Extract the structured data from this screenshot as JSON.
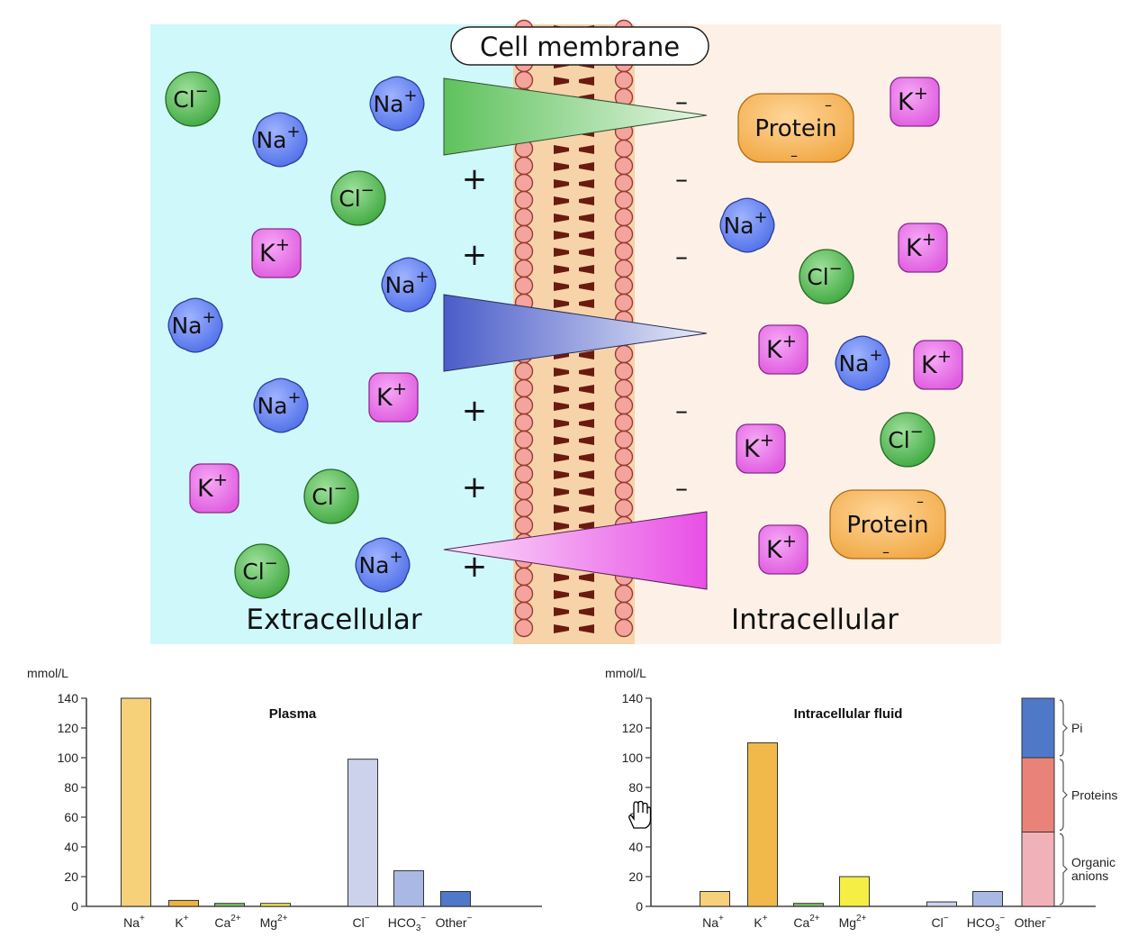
{
  "diagram": {
    "title": "Cell membrane",
    "left_label": "Extracellular",
    "right_label": "Intracellular",
    "colors": {
      "extracellular_bg": "#cff8fb",
      "intracellular_bg": "#fdf1e7",
      "na": "#4f6fe8",
      "k": "#e05ce0",
      "cl": "#3fa83f",
      "protein": "#f0a640",
      "na_gradient": "#4a5cc9",
      "k_gradient": "#e84fe6",
      "cl_gradient": "#5ec25c"
    },
    "ions": {
      "na": {
        "base": "Na",
        "sup": "+"
      },
      "k": {
        "base": "K",
        "sup": "+"
      },
      "cl": {
        "base": "Cl",
        "sup": "−"
      },
      "protein": {
        "base": "Protein",
        "charge": "–"
      }
    },
    "charges": {
      "positive": "+",
      "negative": "–"
    }
  },
  "charts": [
    {
      "title": "Plasma",
      "unit": "mmol/L",
      "chart_data": {
        "type": "bar",
        "title": "Plasma",
        "ylabel": "mmol/L",
        "ylim": [
          0,
          140
        ],
        "yticks": [
          0,
          20,
          40,
          60,
          80,
          100,
          120,
          140
        ],
        "categories": [
          {
            "base": "Na",
            "sup": "+"
          },
          {
            "base": "K",
            "sup": "+"
          },
          {
            "base": "Ca",
            "sup": "2+"
          },
          {
            "base": "Mg",
            "sup": "2+"
          },
          {
            "base": "Cl",
            "sup": "−"
          },
          {
            "base": "HCO",
            "sub": "3",
            "sup": "−"
          },
          {
            "base": "Other",
            "sup": "−"
          }
        ],
        "values": [
          140,
          4,
          2,
          2,
          99,
          24,
          10
        ],
        "colors": [
          "#f7d07a",
          "#ecb43f",
          "#7fbf6a",
          "#f2e75a",
          "#cdd2ec",
          "#aab9e3",
          "#4f78c9"
        ]
      }
    },
    {
      "title": "Intracellular fluid",
      "unit": "mmol/L",
      "chart_data": {
        "type": "bar",
        "title": "Intracellular fluid",
        "ylabel": "mmol/L",
        "ylim": [
          0,
          140
        ],
        "yticks": [
          0,
          20,
          40,
          60,
          80,
          100,
          120,
          140
        ],
        "categories": [
          {
            "base": "Na",
            "sup": "+"
          },
          {
            "base": "K",
            "sup": "+"
          },
          {
            "base": "Ca",
            "sup": "2+"
          },
          {
            "base": "Mg",
            "sup": "2+"
          },
          {
            "base": "Cl",
            "sup": "−"
          },
          {
            "base": "HCO",
            "sub": "3",
            "sup": "−"
          },
          {
            "base": "Other",
            "sup": "−"
          }
        ],
        "values": [
          10,
          110,
          2,
          20,
          3,
          10,
          140
        ],
        "colors": [
          "#f7d07a",
          "#f0b94a",
          "#7fbf6a",
          "#f5ee44",
          "#cdd2ec",
          "#aab9e3",
          "#4f78c9"
        ],
        "other_stack": [
          {
            "name": "Organic anions",
            "value": 50,
            "color": "#f0b2b8"
          },
          {
            "name": "Proteins",
            "value": 50,
            "color": "#e9837a"
          },
          {
            "name": "Pi",
            "value": 40,
            "color": "#4f78c9"
          }
        ],
        "stack_labels": [
          "Pi",
          "Proteins",
          "Organic anions"
        ]
      }
    }
  ]
}
